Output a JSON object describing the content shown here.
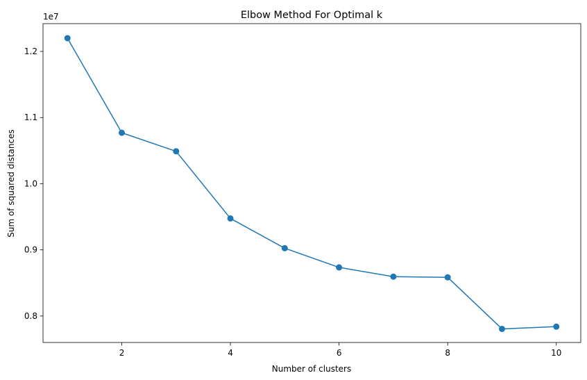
{
  "chart_data": {
    "type": "line",
    "title": "Elbow Method For Optimal k",
    "xlabel": "Number of clusters",
    "ylabel": "Sum of squared distances",
    "y_offset_label": "1e7",
    "x": [
      1,
      2,
      3,
      4,
      5,
      6,
      7,
      8,
      9,
      10
    ],
    "series": [
      {
        "values": [
          12200000,
          10770000,
          10490000,
          9475000,
          9025000,
          8735000,
          8595000,
          8585000,
          7805000,
          7840000
        ],
        "color": "#1f77b4",
        "marker": "circle"
      }
    ],
    "xlim": [
      0.55,
      10.45
    ],
    "ylim": [
      7600000,
      12420000
    ],
    "xticks": [
      2,
      4,
      6,
      8,
      10
    ],
    "xtick_labels": [
      "2",
      "4",
      "6",
      "8",
      "10"
    ],
    "yticks": [
      8000000,
      9000000,
      10000000,
      11000000,
      12000000
    ],
    "ytick_labels": [
      "0.8",
      "0.9",
      "1.0",
      "1.1",
      "1.2"
    ],
    "grid": false,
    "legend": "none"
  }
}
